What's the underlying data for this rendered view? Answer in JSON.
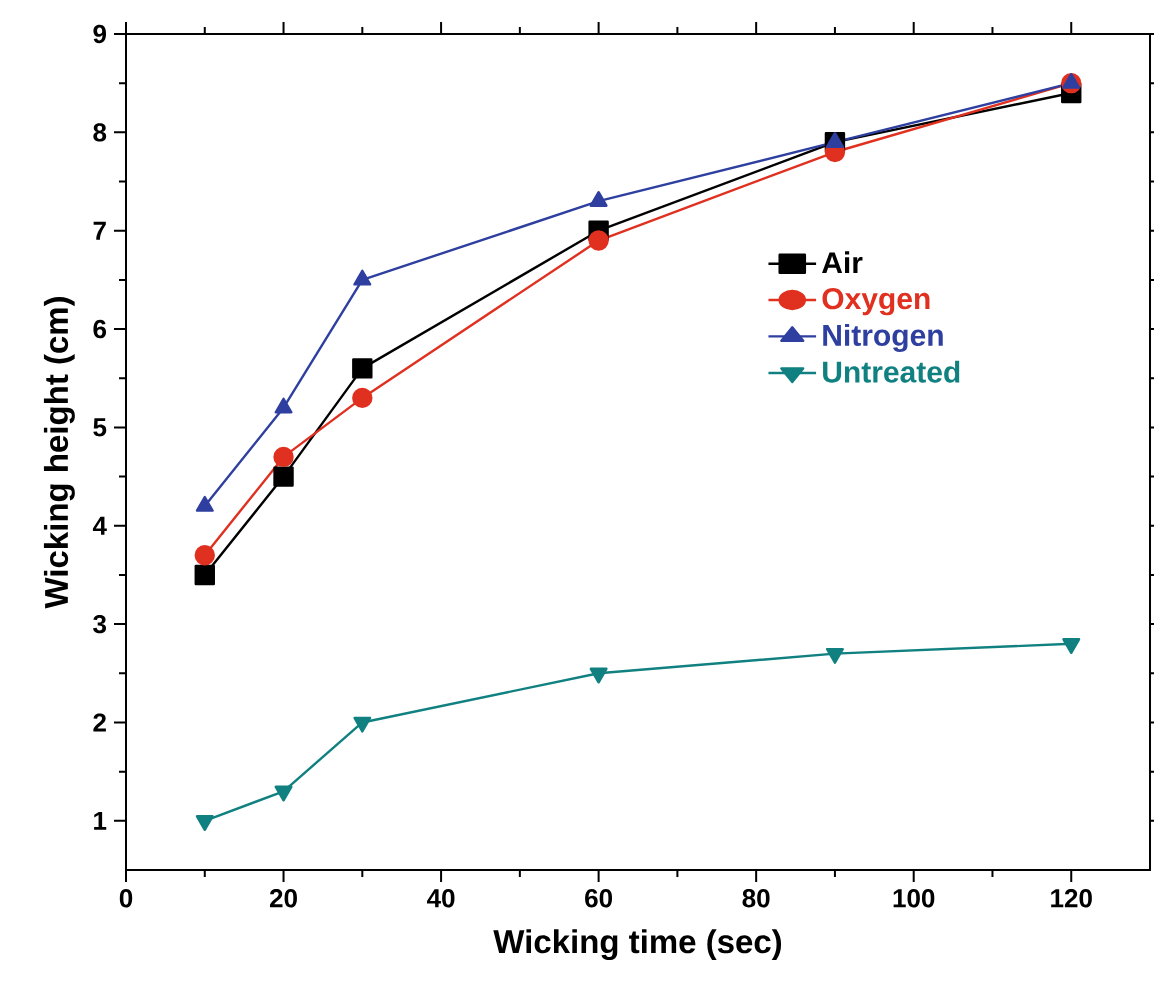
{
  "chart_data": {
    "type": "line",
    "xlabel": "Wicking time (sec)",
    "ylabel": "Wicking height (cm)",
    "x": [
      10,
      20,
      30,
      60,
      90,
      120
    ],
    "series": [
      {
        "name": "Air",
        "color": "#000000",
        "marker": "square",
        "values": [
          3.5,
          4.5,
          5.6,
          7.0,
          7.9,
          8.4
        ]
      },
      {
        "name": "Oxygen",
        "color": "#e03020",
        "marker": "circle",
        "values": [
          3.7,
          4.7,
          5.3,
          6.9,
          7.8,
          8.5
        ]
      },
      {
        "name": "Nitrogen",
        "color": "#2e3fa0",
        "marker": "triangle",
        "values": [
          4.2,
          5.2,
          6.5,
          7.3,
          7.9,
          8.5
        ]
      },
      {
        "name": "Untreated",
        "color": "#108080",
        "marker": "triangle-down",
        "values": [
          1.0,
          1.3,
          2.0,
          2.5,
          2.7,
          2.8
        ]
      }
    ],
    "xlim": [
      0,
      130
    ],
    "xticks": [
      0,
      20,
      40,
      60,
      80,
      100,
      120
    ],
    "ylim": [
      0.5,
      9
    ],
    "yticks": [
      1,
      2,
      3,
      4,
      5,
      6,
      7,
      8,
      9
    ],
    "legend": "right",
    "grid": false,
    "line_style": "solid"
  }
}
